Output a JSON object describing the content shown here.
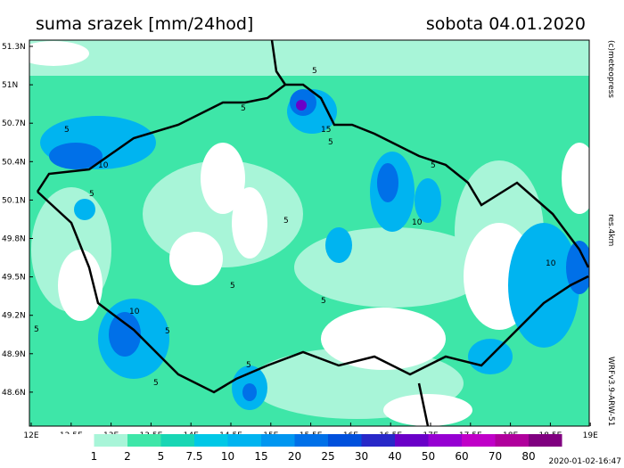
{
  "header": {
    "title": "suma srazek [mm/24hod]",
    "date": "sobota 04.01.2020"
  },
  "map": {
    "lat_labels": [
      "51.3N",
      "51N",
      "50.7N",
      "50.4N",
      "50.1N",
      "49.8N",
      "49.5N",
      "49.2N",
      "48.9N",
      "48.6N"
    ],
    "lon_labels": [
      "12E",
      "12.5E",
      "13E",
      "13.5E",
      "14E",
      "14.5E",
      "15E",
      "15.5E",
      "16E",
      "16.5E",
      "17E",
      "17.5E",
      "18E",
      "18.5E",
      "19E"
    ],
    "contour_labels": [
      "5",
      "5",
      "10",
      "5",
      "5",
      "15",
      "5",
      "5",
      "10",
      "5",
      "10",
      "5",
      "10",
      "5",
      "5",
      "5",
      "5",
      "5"
    ]
  },
  "legend": {
    "labels": [
      "1",
      "2",
      "5",
      "7.5",
      "10",
      "15",
      "20",
      "25",
      "30",
      "40",
      "50",
      "60",
      "70",
      "80"
    ]
  },
  "side": {
    "copyright": "(c)meteopress",
    "resolution": "res.4km",
    "model": "WRFv3.9-ARW-51"
  },
  "footer": {
    "timestamp": "2020-01-02-16:47"
  }
}
